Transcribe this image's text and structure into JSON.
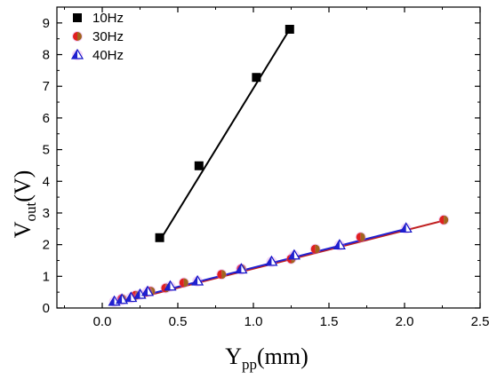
{
  "chart_data": {
    "type": "scatter",
    "xlim": [
      -0.3,
      2.5
    ],
    "ylim": [
      0,
      9.5
    ],
    "x_ticks": [
      "0.0",
      "0.5",
      "1.0",
      "1.5",
      "2.0",
      "2.5"
    ],
    "y_ticks": [
      "0",
      "1",
      "2",
      "3",
      "4",
      "5",
      "6",
      "7",
      "8",
      "9"
    ],
    "xlabel": {
      "main": "Y",
      "sub": "pp",
      "unit": "(mm)"
    },
    "ylabel": {
      "main": "V",
      "sub": "out",
      "unit": "(V)"
    },
    "legend_position": "top-left",
    "series": [
      {
        "name": "10Hz",
        "marker": "square",
        "color": "#000000",
        "fit_color": "#000000",
        "points": [
          [
            0.38,
            2.22
          ],
          [
            0.64,
            4.49
          ],
          [
            1.02,
            7.28
          ],
          [
            1.24,
            8.8
          ]
        ],
        "fit": [
          [
            0.38,
            2.12
          ],
          [
            1.24,
            8.8
          ]
        ]
      },
      {
        "name": "30Hz",
        "marker": "half-filled-circle",
        "color": "#e02020",
        "fill_color": "#a0641e",
        "fit_color": "#c02020",
        "points": [
          [
            0.13,
            0.29
          ],
          [
            0.22,
            0.4
          ],
          [
            0.32,
            0.53
          ],
          [
            0.42,
            0.63
          ],
          [
            0.54,
            0.8
          ],
          [
            0.79,
            1.06
          ],
          [
            0.92,
            1.24
          ],
          [
            1.25,
            1.55
          ],
          [
            1.41,
            1.86
          ],
          [
            1.71,
            2.24
          ],
          [
            2.26,
            2.78
          ]
        ],
        "fit": [
          [
            0.08,
            0.13
          ],
          [
            2.26,
            2.76
          ]
        ]
      },
      {
        "name": "40Hz",
        "marker": "triangle",
        "color": "#1010c8",
        "fill_color": "#2020d0",
        "fit_color": "#2020d0",
        "points": [
          [
            0.08,
            0.2
          ],
          [
            0.13,
            0.26
          ],
          [
            0.19,
            0.32
          ],
          [
            0.25,
            0.42
          ],
          [
            0.3,
            0.51
          ],
          [
            0.45,
            0.68
          ],
          [
            0.63,
            0.84
          ],
          [
            0.92,
            1.22
          ],
          [
            1.12,
            1.46
          ],
          [
            1.27,
            1.66
          ],
          [
            1.57,
            1.98
          ],
          [
            2.01,
            2.51
          ]
        ],
        "fit": [
          [
            0.08,
            0.16
          ],
          [
            2.01,
            2.5
          ]
        ]
      }
    ]
  }
}
